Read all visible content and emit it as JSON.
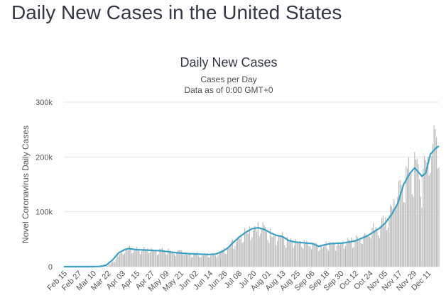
{
  "page": {
    "title": "Daily New Cases in the United States"
  },
  "chart_data": {
    "type": "bar",
    "title": "Daily New Cases",
    "subtitle": [
      "Cases per Day",
      "Data as of 0:00 GMT+0"
    ],
    "ylabel": "Novel Coronavirus Daily Cases",
    "xlabel": "",
    "ylim": [
      0,
      300000
    ],
    "yticks": [
      {
        "value": 0,
        "label": "0"
      },
      {
        "value": 100000,
        "label": "100k"
      },
      {
        "value": 200000,
        "label": "200k"
      },
      {
        "value": 300000,
        "label": "300k"
      }
    ],
    "xticks": [
      "Feb 15",
      "Feb 27",
      "Mar 10",
      "Mar 22",
      "Apr 03",
      "Apr 15",
      "Apr 27",
      "May 09",
      "May 21",
      "Jun 02",
      "Jun 14",
      "Jun 26",
      "Jul 08",
      "Jul 20",
      "Aug 01",
      "Aug 13",
      "Aug 25",
      "Sep 06",
      "Sep 18",
      "Sep 30",
      "Oct 12",
      "Oct 24",
      "Nov 05",
      "Nov 17",
      "Nov 29",
      "Dec 11"
    ],
    "grid": true,
    "legend": "none",
    "colors": {
      "bars": "#bdbdbd",
      "moving_average": "#3aa0c4"
    },
    "x_start": "Feb 15",
    "days": 309,
    "series": [
      {
        "kind": "daily",
        "approx_daily_keypoints": [
          [
            0,
            0
          ],
          [
            20,
            0
          ],
          [
            30,
            200
          ],
          [
            36,
            2000
          ],
          [
            40,
            8000
          ],
          [
            45,
            20000
          ],
          [
            50,
            30000
          ],
          [
            55,
            33000
          ],
          [
            60,
            32000
          ],
          [
            75,
            30000
          ],
          [
            90,
            28000
          ],
          [
            100,
            24000
          ],
          [
            110,
            22000
          ],
          [
            120,
            21000
          ],
          [
            125,
            22000
          ],
          [
            130,
            27000
          ],
          [
            135,
            35000
          ],
          [
            140,
            45000
          ],
          [
            145,
            55000
          ],
          [
            150,
            64000
          ],
          [
            155,
            70000
          ],
          [
            160,
            72000
          ],
          [
            165,
            68000
          ],
          [
            170,
            60000
          ],
          [
            180,
            54000
          ],
          [
            185,
            45000
          ],
          [
            195,
            41000
          ],
          [
            205,
            40000
          ],
          [
            212,
            35000
          ],
          [
            220,
            42000
          ],
          [
            230,
            43000
          ],
          [
            240,
            48000
          ],
          [
            250,
            60000
          ],
          [
            255,
            68000
          ],
          [
            260,
            75000
          ],
          [
            265,
            85000
          ],
          [
            270,
            105000
          ],
          [
            275,
            125000
          ],
          [
            280,
            160000
          ],
          [
            285,
            170000
          ],
          [
            290,
            180000
          ],
          [
            295,
            150000
          ],
          [
            300,
            200000
          ],
          [
            305,
            225000
          ],
          [
            309,
            220000
          ]
        ]
      },
      {
        "kind": "7-day moving average",
        "approx_keypoints": [
          [
            0,
            0
          ],
          [
            20,
            0
          ],
          [
            30,
            500
          ],
          [
            35,
            3000
          ],
          [
            40,
            12000
          ],
          [
            45,
            25000
          ],
          [
            50,
            31000
          ],
          [
            53,
            33000
          ],
          [
            60,
            31000
          ],
          [
            70,
            30000
          ],
          [
            80,
            29000
          ],
          [
            90,
            26000
          ],
          [
            100,
            24000
          ],
          [
            110,
            23000
          ],
          [
            120,
            22000
          ],
          [
            125,
            23000
          ],
          [
            130,
            27000
          ],
          [
            135,
            34000
          ],
          [
            140,
            45000
          ],
          [
            145,
            55000
          ],
          [
            150,
            63000
          ],
          [
            155,
            69000
          ],
          [
            160,
            71000
          ],
          [
            165,
            68000
          ],
          [
            170,
            62000
          ],
          [
            175,
            57000
          ],
          [
            180,
            55000
          ],
          [
            185,
            48000
          ],
          [
            190,
            45000
          ],
          [
            200,
            43000
          ],
          [
            205,
            42000
          ],
          [
            210,
            37000
          ],
          [
            215,
            40000
          ],
          [
            220,
            42000
          ],
          [
            230,
            43000
          ],
          [
            240,
            47000
          ],
          [
            250,
            56000
          ],
          [
            255,
            63000
          ],
          [
            260,
            70000
          ],
          [
            265,
            80000
          ],
          [
            270,
            95000
          ],
          [
            275,
            115000
          ],
          [
            280,
            150000
          ],
          [
            285,
            170000
          ],
          [
            289,
            180000
          ],
          [
            295,
            165000
          ],
          [
            298,
            170000
          ],
          [
            302,
            205000
          ],
          [
            306,
            215000
          ],
          [
            309,
            220000
          ]
        ]
      }
    ]
  }
}
